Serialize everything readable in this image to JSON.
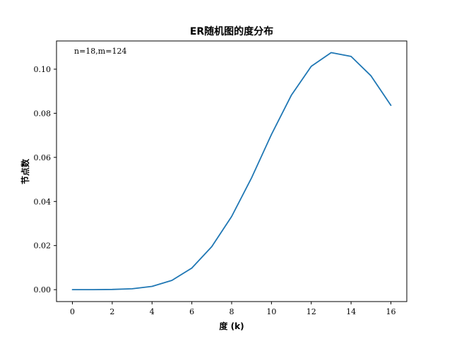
{
  "chart_data": {
    "type": "line",
    "title": "ER随机图的度分布",
    "xlabel": "度 (k)",
    "ylabel": "节点数",
    "annotation": "n=18,m=124",
    "xlim": [
      -0.8,
      16.8
    ],
    "ylim": [
      -0.0054,
      0.1128
    ],
    "x_ticks": [
      0,
      2,
      4,
      6,
      8,
      10,
      12,
      14,
      16
    ],
    "x_tick_labels": [
      "0",
      "2",
      "4",
      "6",
      "8",
      "10",
      "12",
      "14",
      "16"
    ],
    "y_ticks": [
      0.0,
      0.02,
      0.04,
      0.06,
      0.08,
      0.1
    ],
    "y_tick_labels": [
      "0.00",
      "0.02",
      "0.04",
      "0.06",
      "0.08",
      "0.10"
    ],
    "grid": false,
    "legend": "none",
    "series": [
      {
        "color": "#1f77b4",
        "x": [
          0,
          1,
          2,
          3,
          4,
          5,
          6,
          7,
          8,
          9,
          10,
          11,
          12,
          13,
          14,
          15,
          16
        ],
        "y": [
          0.0,
          0.0,
          0.0001,
          0.0004,
          0.0015,
          0.0042,
          0.0098,
          0.0195,
          0.0332,
          0.0507,
          0.0704,
          0.0882,
          0.1013,
          0.1075,
          0.1058,
          0.097,
          0.0836
        ]
      }
    ]
  }
}
